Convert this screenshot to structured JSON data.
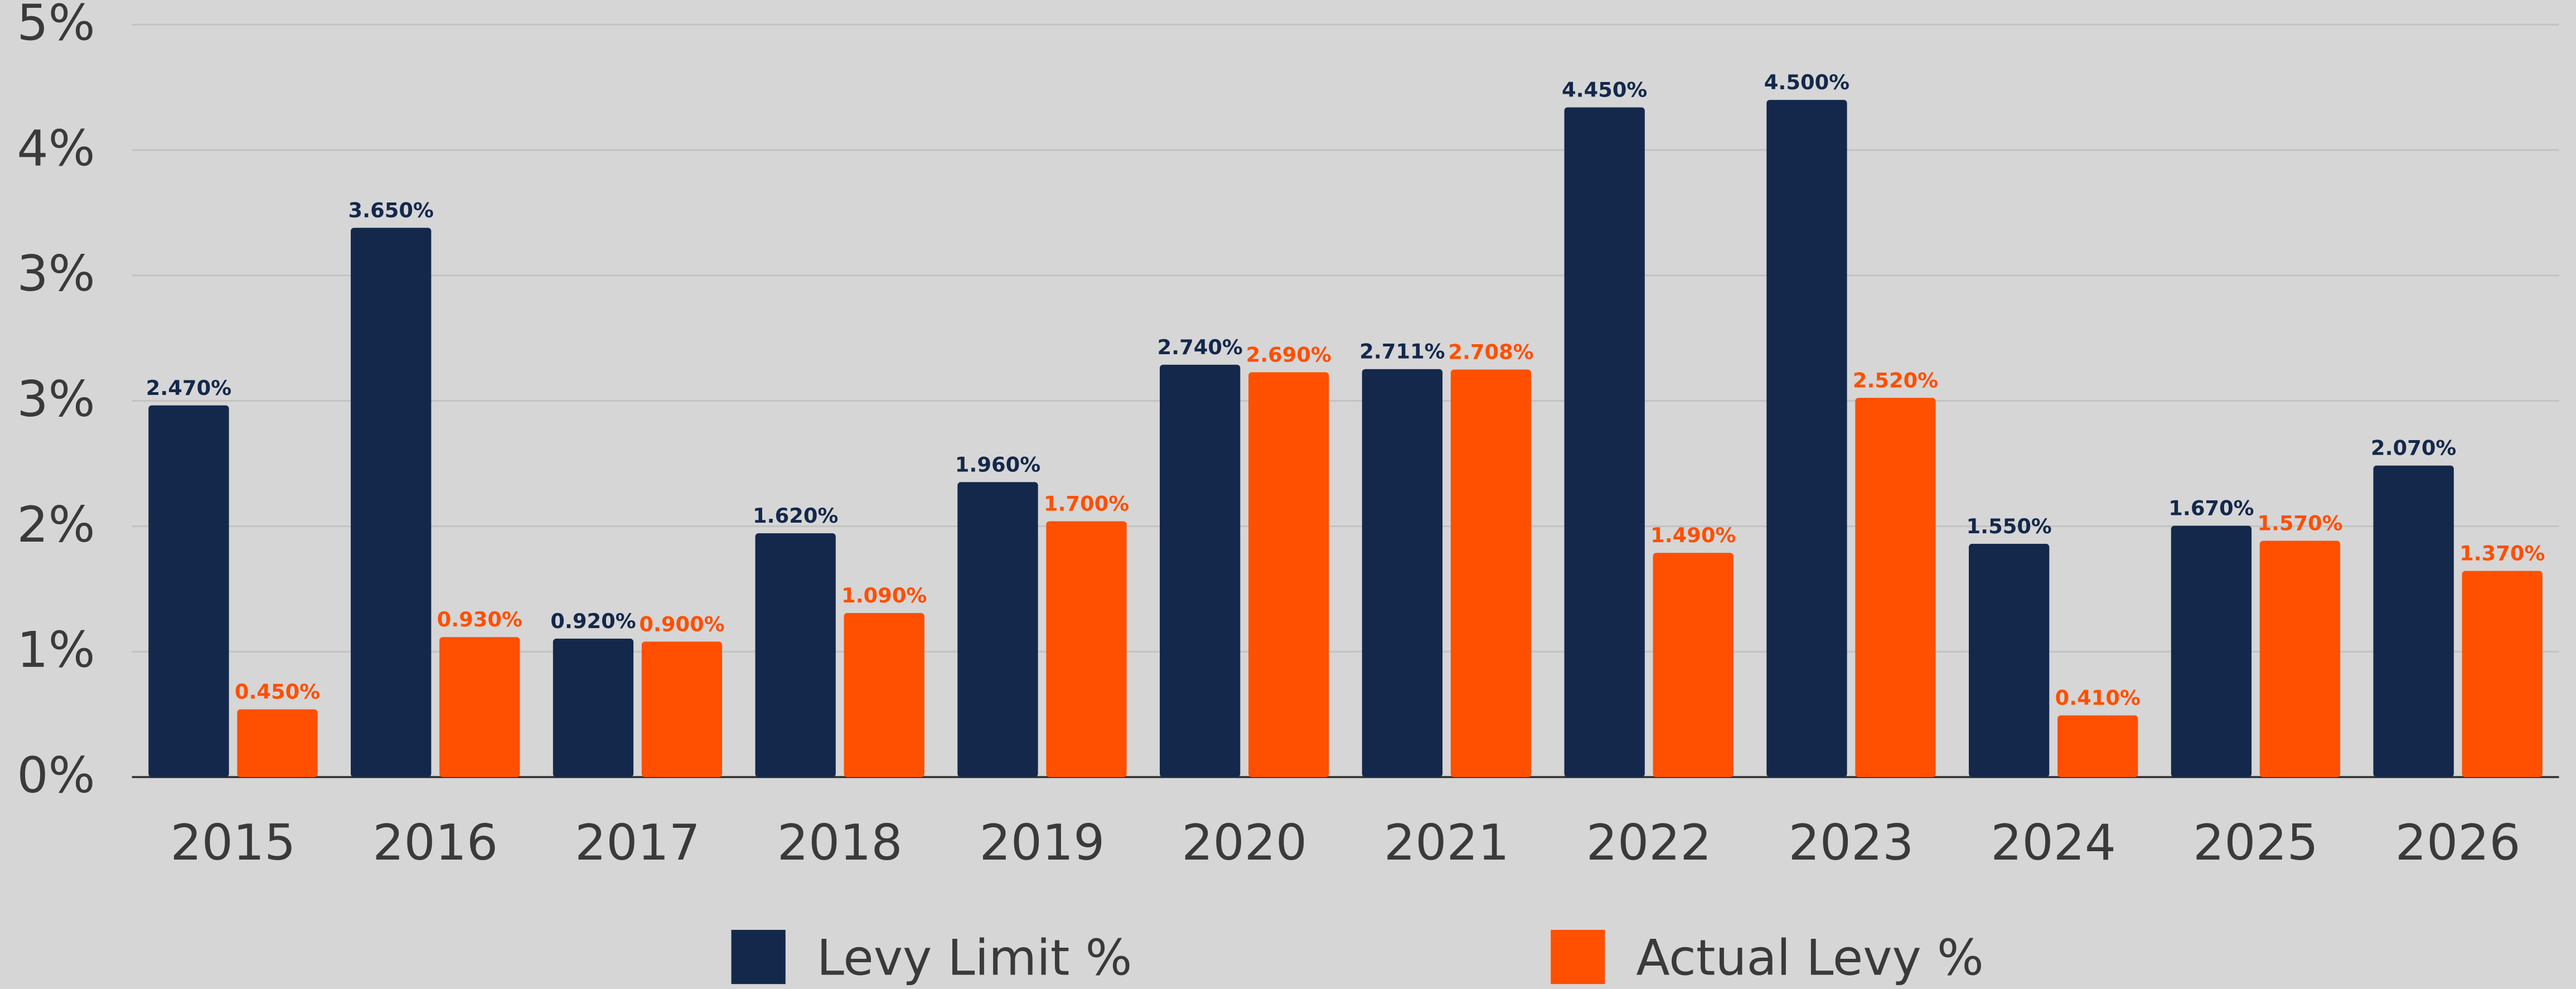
{
  "chart_data": {
    "type": "bar",
    "categories": [
      "2015",
      "2016",
      "2017",
      "2018",
      "2019",
      "2020",
      "2021",
      "2022",
      "2023",
      "2024",
      "2025",
      "2026"
    ],
    "series": [
      {
        "name": "Levy Limit %",
        "color": "#14284b",
        "values": [
          2.47,
          3.65,
          0.92,
          1.62,
          1.96,
          2.74,
          2.711,
          4.45,
          4.5,
          1.55,
          1.67,
          2.07
        ],
        "value_labels": [
          "2.470%",
          "3.650%",
          "0.920%",
          "1.620%",
          "1.960%",
          "2.740%",
          "2.711%",
          "4.450%",
          "4.500%",
          "1.550%",
          "1.670%",
          "2.070%"
        ]
      },
      {
        "name": "Actual Levy %",
        "color": "#ff4f00",
        "values": [
          0.45,
          0.93,
          0.9,
          1.09,
          1.7,
          2.69,
          2.708,
          1.49,
          2.52,
          0.41,
          1.57,
          1.37
        ],
        "value_labels": [
          "0.450%",
          "0.930%",
          "0.900%",
          "1.090%",
          "1.700%",
          "2.690%",
          "2.708%",
          "1.490%",
          "2.520%",
          "0.410%",
          "1.570%",
          "1.370%"
        ]
      }
    ],
    "ylim": [
      0,
      5
    ],
    "yticks": [
      {
        "value": 0,
        "label": "0%"
      },
      {
        "value": 0.8333,
        "label": "1%"
      },
      {
        "value": 1.6667,
        "label": "2%"
      },
      {
        "value": 2.5,
        "label": "3%"
      },
      {
        "value": 3.3333,
        "label": "3%"
      },
      {
        "value": 4.1667,
        "label": "4%"
      },
      {
        "value": 5,
        "label": "5%"
      }
    ],
    "grid": true,
    "legend": "bottom"
  }
}
